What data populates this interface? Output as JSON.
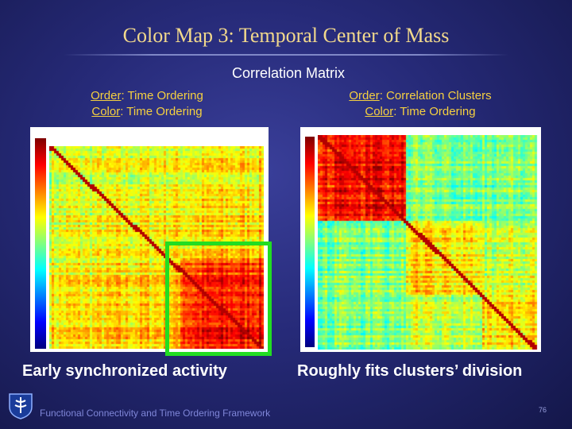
{
  "title": "Color Map  3: Temporal Center of Mass",
  "subtitle": "Correlation Matrix",
  "left_panel": {
    "order_key": "Order",
    "order_value": ": Time Ordering",
    "color_key": "Color",
    "color_value": ": Time Ordering",
    "bottom_caption": "Early synchronized activity"
  },
  "right_panel": {
    "order_key": "Order",
    "order_value": ": Correlation Clusters",
    "color_key": "Color",
    "color_value": ": Time Ordering",
    "bottom_caption": "Roughly fits clusters’ division"
  },
  "footer": "Functional Connectivity and Time Ordering Framework",
  "page_number": "76",
  "colors": {
    "title": "#f2d98c",
    "caption": "#f5d040",
    "highlight": "#22dd22"
  }
}
